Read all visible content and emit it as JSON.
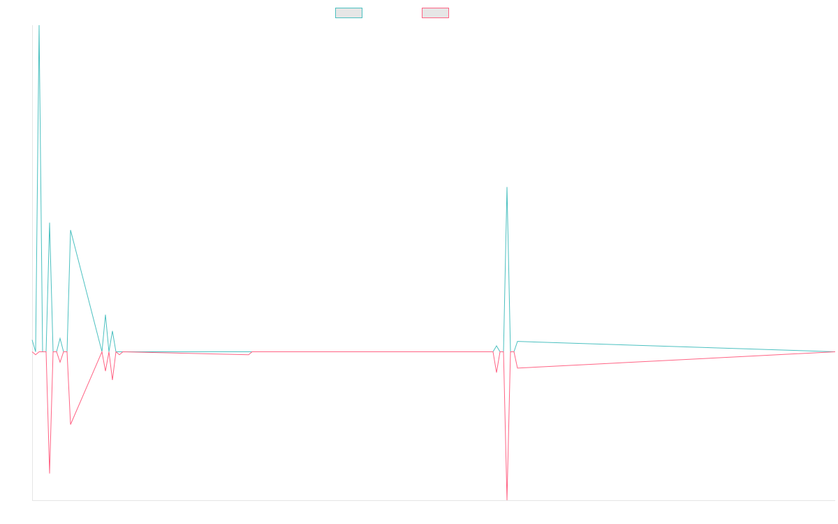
{
  "chart_data": {
    "type": "line",
    "title": "",
    "xlabel": "",
    "ylabel": "",
    "x_domain": [
      0,
      230
    ],
    "ylim": [
      -1,
      2.2
    ],
    "grid": false,
    "legend_position": "top-center",
    "series": [
      {
        "name": "",
        "color": "#4bc0c0",
        "x": [
          0,
          1,
          2,
          3,
          4,
          5,
          6,
          7,
          8,
          9,
          10,
          11,
          20,
          21,
          22,
          23,
          24,
          25,
          26,
          62,
          63,
          132,
          133,
          134,
          135,
          136,
          137,
          138,
          139,
          230
        ],
        "y": [
          0.08,
          0,
          2.2,
          0,
          0,
          0.87,
          0,
          0,
          0.09,
          0,
          0,
          0.82,
          0,
          0.25,
          0,
          0.14,
          0,
          0,
          0,
          0,
          0,
          0,
          0.04,
          0,
          0,
          1.11,
          0,
          0,
          0.07,
          0
        ]
      },
      {
        "name": "",
        "color": "#ff6384",
        "x": [
          0,
          1,
          2,
          3,
          4,
          5,
          6,
          7,
          8,
          9,
          10,
          11,
          20,
          21,
          22,
          23,
          24,
          25,
          26,
          62,
          63,
          132,
          133,
          134,
          135,
          136,
          137,
          138,
          139,
          230
        ],
        "y": [
          0,
          -0.02,
          0,
          0,
          0,
          -0.82,
          0,
          0,
          -0.07,
          0,
          0,
          -0.49,
          0,
          -0.13,
          0,
          -0.19,
          0,
          -0.02,
          0,
          -0.02,
          0,
          0,
          -0.14,
          0,
          0,
          -1.0,
          0,
          0,
          -0.11,
          0
        ]
      }
    ]
  }
}
